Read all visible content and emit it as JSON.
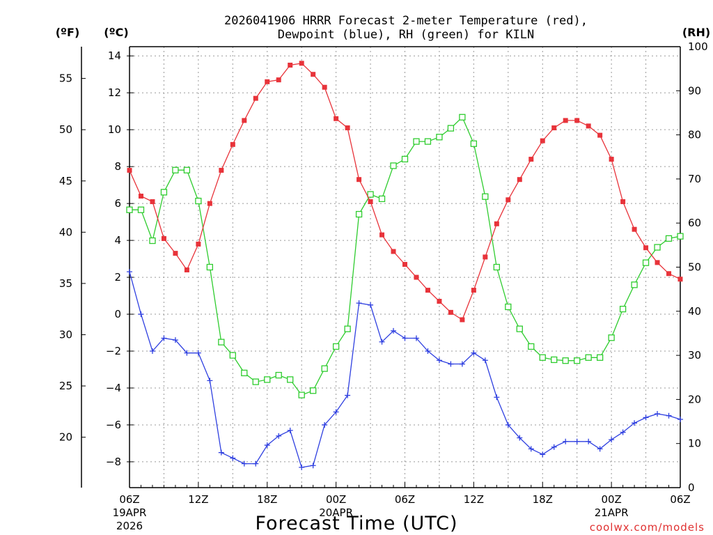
{
  "chart_data": {
    "type": "line",
    "title_line1": "2026041906 HRRR Forecast 2-meter Temperature (red),",
    "title_line2": "Dewpoint (blue), RH (green) for KILN",
    "xlabel": "Forecast Time (UTC)",
    "credit": "coolwx.com/models",
    "units": {
      "fahrenheit": "(ºF)",
      "celsius": "(ºC)",
      "rh": "(RH)"
    },
    "x_range_hours": [
      0,
      48
    ],
    "ylim_c": [
      -9.4,
      14.5
    ],
    "ylim_rh": [
      0,
      100
    ],
    "yticks_c": [
      "14",
      "12",
      "10",
      "8",
      "6",
      "4",
      "2",
      "0",
      "−2",
      "−4",
      "−6",
      "−8"
    ],
    "yticks_c_values": [
      14,
      12,
      10,
      8,
      6,
      4,
      2,
      0,
      -2,
      -4,
      -6,
      -8
    ],
    "yticks_f": [
      "55",
      "50",
      "45",
      "40",
      "35",
      "30",
      "25",
      "20"
    ],
    "yticks_f_values": [
      55,
      50,
      45,
      40,
      35,
      30,
      25,
      20
    ],
    "yticks_rh": [
      "100",
      "90",
      "80",
      "70",
      "60",
      "50",
      "40",
      "30",
      "20",
      "10",
      "0"
    ],
    "yticks_rh_values": [
      100,
      90,
      80,
      70,
      60,
      50,
      40,
      30,
      20,
      10,
      0
    ],
    "xticks": [
      {
        "hour": 0,
        "label": "06Z",
        "sub1": "19APR",
        "sub2": "2026"
      },
      {
        "hour": 6,
        "label": "12Z",
        "sub1": "",
        "sub2": ""
      },
      {
        "hour": 12,
        "label": "18Z",
        "sub1": "",
        "sub2": ""
      },
      {
        "hour": 18,
        "label": "00Z",
        "sub1": "20APR",
        "sub2": ""
      },
      {
        "hour": 24,
        "label": "06Z",
        "sub1": "",
        "sub2": ""
      },
      {
        "hour": 30,
        "label": "12Z",
        "sub1": "",
        "sub2": ""
      },
      {
        "hour": 36,
        "label": "18Z",
        "sub1": "",
        "sub2": ""
      },
      {
        "hour": 42,
        "label": "00Z",
        "sub1": "21APR",
        "sub2": ""
      },
      {
        "hour": 48,
        "label": "06Z",
        "sub1": "",
        "sub2": ""
      }
    ],
    "series": [
      {
        "name": "2-meter Temperature",
        "units": "C",
        "color": "#e8333a",
        "marker": "filled-square",
        "values": [
          7.8,
          6.4,
          6.1,
          4.1,
          3.3,
          2.4,
          3.8,
          6.0,
          7.8,
          9.2,
          10.5,
          11.7,
          12.6,
          12.7,
          13.5,
          13.6,
          13.0,
          12.3,
          10.6,
          10.1,
          7.3,
          6.1,
          4.3,
          3.4,
          2.7,
          2.0,
          1.3,
          0.7,
          0.1,
          -0.3,
          1.3,
          3.1,
          4.9,
          6.2,
          7.3,
          8.4,
          9.4,
          10.1,
          10.5,
          10.5,
          10.2,
          9.7,
          8.4,
          6.1,
          4.6,
          3.6,
          2.8,
          2.2,
          1.9
        ]
      },
      {
        "name": "Dewpoint",
        "units": "C",
        "color": "#2e3fe0",
        "marker": "plus",
        "values": [
          2.3,
          0.0,
          -2.0,
          -1.3,
          -1.4,
          -2.1,
          -2.1,
          -3.6,
          -7.5,
          -7.8,
          -8.1,
          -8.1,
          -7.1,
          -6.6,
          -6.3,
          -8.3,
          -8.2,
          -6.0,
          -5.3,
          -4.4,
          0.6,
          0.5,
          -1.5,
          -0.9,
          -1.3,
          -1.3,
          -2.0,
          -2.5,
          -2.7,
          -2.7,
          -2.1,
          -2.5,
          -4.5,
          -6.0,
          -6.7,
          -7.3,
          -7.6,
          -7.2,
          -6.9,
          -6.9,
          -6.9,
          -7.3,
          -6.8,
          -6.4,
          -5.9,
          -5.6,
          -5.4,
          -5.5,
          -5.7
        ]
      },
      {
        "name": "RH",
        "units": "%",
        "color": "#2ecc2e",
        "marker": "open-square",
        "values": [
          63,
          63,
          56,
          67,
          72,
          72,
          65,
          50,
          33,
          30,
          26,
          24,
          24.5,
          25.5,
          24.5,
          21,
          22,
          27,
          32,
          36,
          62,
          66.5,
          65.5,
          73,
          74.5,
          78.5,
          78.5,
          79.5,
          81.5,
          84,
          78,
          66,
          50,
          41,
          36,
          32,
          29.5,
          29,
          28.8,
          28.8,
          29.5,
          29.5,
          34,
          40.5,
          46,
          51,
          54.5,
          56.5,
          57
        ]
      }
    ]
  }
}
